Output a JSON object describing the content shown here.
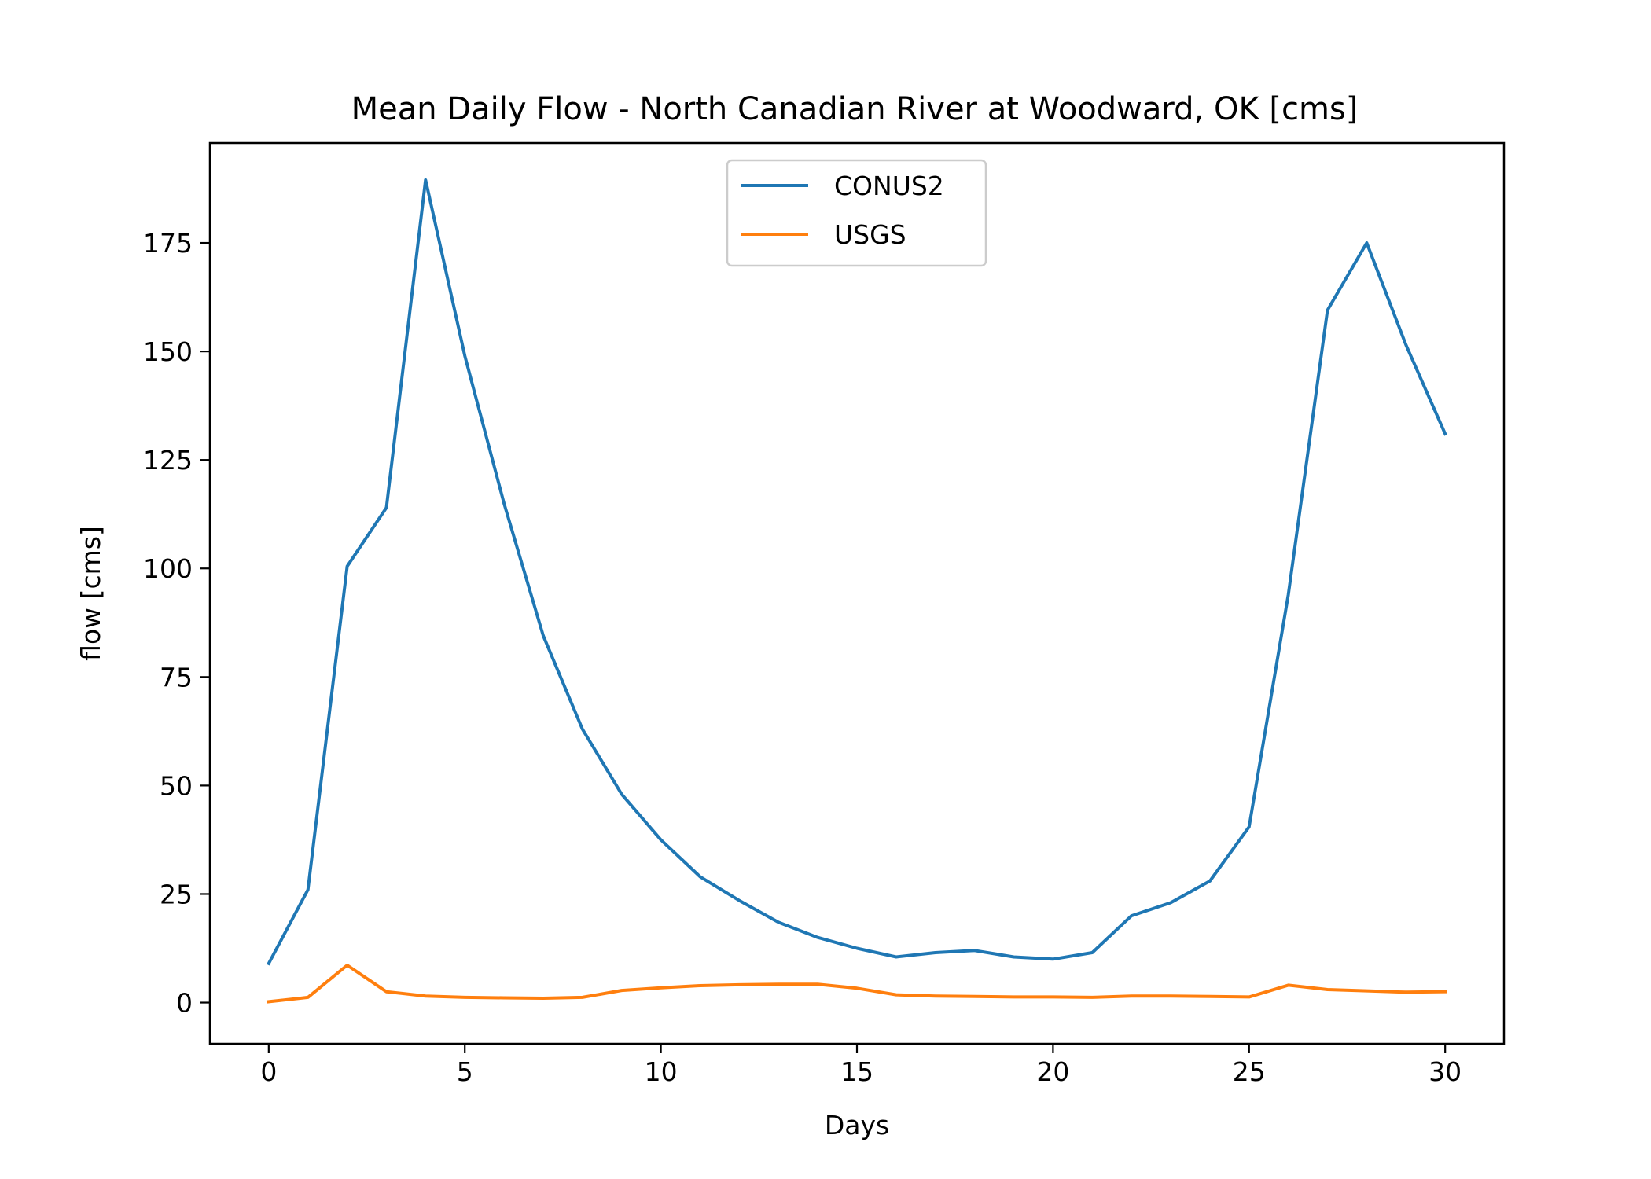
{
  "chart_data": {
    "type": "line",
    "title": "Mean Daily Flow - North Canadian River at Woodward, OK [cms]",
    "xlabel": "Days",
    "ylabel": "flow [cms]",
    "xlim": [
      -1.5,
      31.5
    ],
    "ylim": [
      -9.5,
      198
    ],
    "xticks": [
      0,
      5,
      10,
      15,
      20,
      25,
      30
    ],
    "yticks": [
      0,
      25,
      50,
      75,
      100,
      125,
      150,
      175
    ],
    "grid": false,
    "legend_position": "upper center",
    "x": [
      0,
      1,
      2,
      3,
      4,
      5,
      6,
      7,
      8,
      9,
      10,
      11,
      12,
      13,
      14,
      15,
      16,
      17,
      18,
      19,
      20,
      21,
      22,
      23,
      24,
      25,
      26,
      27,
      28,
      29,
      30
    ],
    "series": [
      {
        "name": "CONUS2",
        "color": "#1f77b4",
        "values": [
          9,
          26,
          100.5,
          114,
          189.5,
          149,
          115,
          84.5,
          63,
          48,
          37.5,
          29,
          23.5,
          18.5,
          15,
          12.5,
          10.5,
          11.5,
          12,
          10.5,
          10,
          11.5,
          20,
          23,
          28,
          40.5,
          94,
          159.5,
          175,
          151.5,
          131
        ]
      },
      {
        "name": "USGS",
        "color": "#ff7f0e",
        "values": [
          0.2,
          1.2,
          8.6,
          2.5,
          1.5,
          1.2,
          1.1,
          1,
          1.2,
          2.8,
          3.4,
          3.9,
          4.1,
          4.2,
          4.2,
          3.3,
          1.8,
          1.5,
          1.4,
          1.3,
          1.3,
          1.2,
          1.5,
          1.5,
          1.4,
          1.3,
          4,
          3,
          2.7,
          2.4,
          2.5
        ]
      }
    ]
  }
}
